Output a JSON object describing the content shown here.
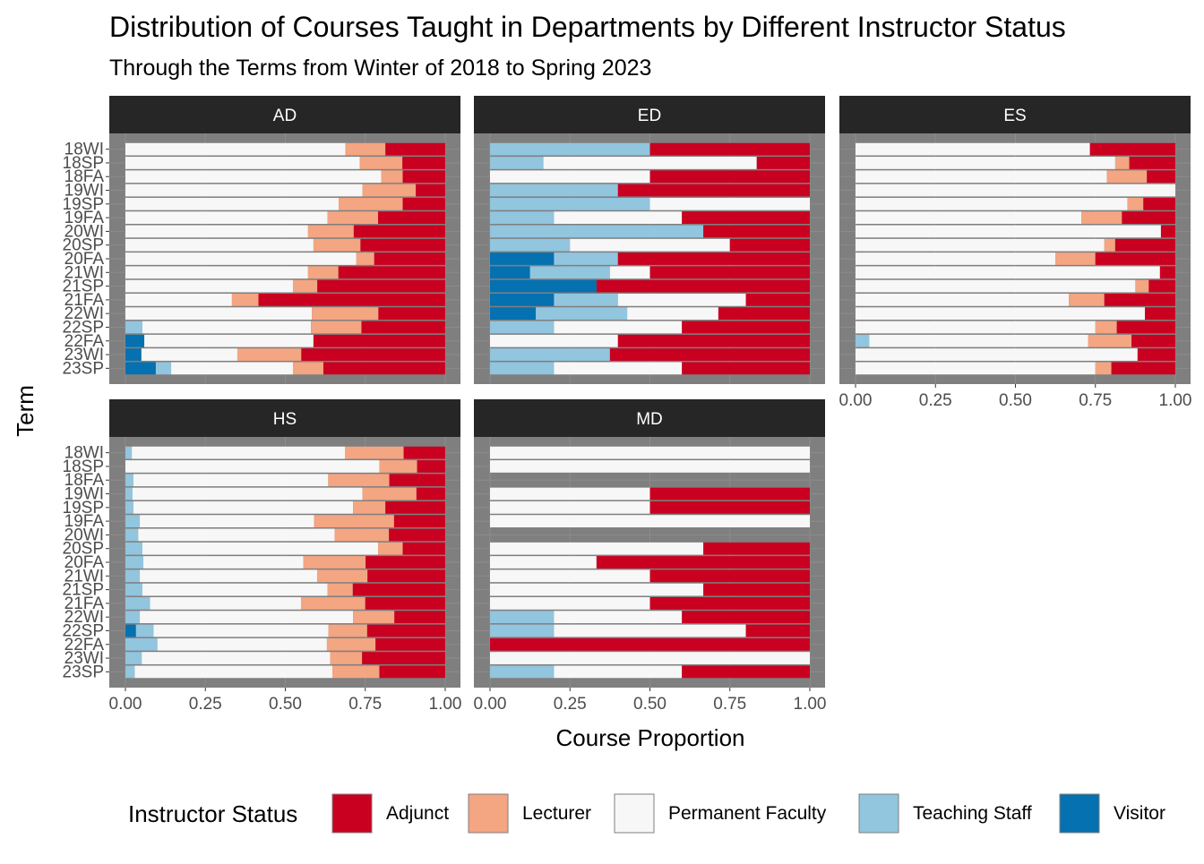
{
  "chart_data": {
    "type": "bar",
    "orientation": "horizontal",
    "stacked": true,
    "title": "Distribution of Courses Taught in Departments by Different Instructor Status",
    "subtitle": "Through the Terms from Winter of 2018 to Spring 2023",
    "xlabel": "Course Proportion",
    "ylabel": "Term",
    "xlim": [
      0,
      1
    ],
    "x_ticks": [
      "0.00",
      "0.25",
      "0.50",
      "0.75",
      "1.00"
    ],
    "categories": [
      "18WI",
      "18SP",
      "18FA",
      "19WI",
      "19SP",
      "19FA",
      "20WI",
      "20SP",
      "20FA",
      "21WI",
      "21SP",
      "21FA",
      "22WI",
      "22SP",
      "22FA",
      "23WI",
      "23SP"
    ],
    "legend": {
      "title": "Instructor Status",
      "position": "bottom",
      "entries": [
        {
          "name": "Adjunct",
          "color": "#ca0020"
        },
        {
          "name": "Lecturer",
          "color": "#f4a582"
        },
        {
          "name": "Permanent Faculty",
          "color": "#f7f7f7"
        },
        {
          "name": "Teaching Staff",
          "color": "#92c5de"
        },
        {
          "name": "Visitor",
          "color": "#0571b0"
        }
      ]
    },
    "stack_order_left_to_right": [
      "Visitor",
      "Teaching Staff",
      "Permanent Faculty",
      "Lecturer",
      "Adjunct"
    ],
    "panels": [
      {
        "name": "AD",
        "rows": [
          [
            0,
            0,
            0.688,
            0.125,
            0.187
          ],
          [
            0,
            0,
            0.733,
            0.133,
            0.134
          ],
          [
            0,
            0,
            0.8,
            0.067,
            0.133
          ],
          [
            0,
            0,
            0.741,
            0.167,
            0.092
          ],
          [
            0,
            0,
            0.667,
            0.2,
            0.133
          ],
          [
            0,
            0,
            0.632,
            0.158,
            0.21
          ],
          [
            0,
            0,
            0.571,
            0.143,
            0.286
          ],
          [
            0,
            0,
            0.588,
            0.147,
            0.265
          ],
          [
            0,
            0,
            0.722,
            0.056,
            0.222
          ],
          [
            0,
            0,
            0.571,
            0.095,
            0.334
          ],
          [
            0,
            0,
            0.524,
            0.076,
            0.4
          ],
          [
            0,
            0,
            0.333,
            0.083,
            0.584
          ],
          [
            0,
            0,
            0.583,
            0.208,
            0.209
          ],
          [
            0,
            0.053,
            0.527,
            0.158,
            0.262
          ],
          [
            0.059,
            0,
            0.529,
            0,
            0.412
          ],
          [
            0.05,
            0,
            0.3,
            0.2,
            0.45
          ],
          [
            0.095,
            0.048,
            0.381,
            0.095,
            0.381
          ]
        ]
      },
      {
        "name": "ED",
        "rows": [
          [
            0,
            0.5,
            0,
            0,
            0.5
          ],
          [
            0,
            0.167,
            0.667,
            0,
            0.166
          ],
          [
            0,
            0,
            0.5,
            0,
            0.5
          ],
          [
            0,
            0.4,
            0,
            0,
            0.6
          ],
          [
            0,
            0.5,
            0.5,
            0,
            0
          ],
          [
            0,
            0.2,
            0.4,
            0,
            0.4
          ],
          [
            0,
            0.667,
            0,
            0,
            0.333
          ],
          [
            0,
            0.25,
            0.5,
            0,
            0.25
          ],
          [
            0.2,
            0.2,
            0,
            0,
            0.6
          ],
          [
            0.125,
            0.25,
            0.125,
            0,
            0.5
          ],
          [
            0.333,
            0,
            0,
            0,
            0.667
          ],
          [
            0.2,
            0.2,
            0.4,
            0,
            0.2
          ],
          [
            0.143,
            0.286,
            0.285,
            0,
            0.286
          ],
          [
            0,
            0.2,
            0.4,
            0,
            0.4
          ],
          [
            0,
            0,
            0.4,
            0,
            0.6
          ],
          [
            0,
            0.375,
            0,
            0,
            0.625
          ],
          [
            0,
            0.2,
            0.4,
            0,
            0.4
          ]
        ]
      },
      {
        "name": "ES",
        "rows": [
          [
            0,
            0,
            0.733,
            0,
            0.267
          ],
          [
            0,
            0,
            0.812,
            0.044,
            0.144
          ],
          [
            0,
            0,
            0.786,
            0.125,
            0.089
          ],
          [
            0,
            0,
            1.0,
            0,
            0
          ],
          [
            0,
            0,
            0.85,
            0.05,
            0.1
          ],
          [
            0,
            0,
            0.706,
            0.127,
            0.167
          ],
          [
            0,
            0,
            0.955,
            0,
            0.045
          ],
          [
            0,
            0,
            0.778,
            0.034,
            0.188
          ],
          [
            0,
            0,
            0.625,
            0.125,
            0.25
          ],
          [
            0,
            0,
            0.952,
            0,
            0.048
          ],
          [
            0,
            0,
            0.875,
            0.042,
            0.083
          ],
          [
            0,
            0,
            0.667,
            0.111,
            0.222
          ],
          [
            0,
            0,
            0.905,
            0,
            0.095
          ],
          [
            0,
            0,
            0.75,
            0.067,
            0.183
          ],
          [
            0,
            0.043,
            0.684,
            0.136,
            0.137
          ],
          [
            0,
            0,
            0.882,
            0,
            0.118
          ],
          [
            0,
            0,
            0.75,
            0.05,
            0.2
          ]
        ]
      },
      {
        "name": "HS",
        "rows": [
          [
            0,
            0.02,
            0.667,
            0.183,
            0.13
          ],
          [
            0,
            0,
            0.794,
            0.118,
            0.088
          ],
          [
            0,
            0.025,
            0.609,
            0.191,
            0.175
          ],
          [
            0,
            0.022,
            0.719,
            0.169,
            0.09
          ],
          [
            0,
            0.025,
            0.687,
            0.101,
            0.187
          ],
          [
            0,
            0.045,
            0.545,
            0.25,
            0.16
          ],
          [
            0,
            0.04,
            0.614,
            0.17,
            0.176
          ],
          [
            0,
            0.053,
            0.737,
            0.077,
            0.133
          ],
          [
            0,
            0.056,
            0.5,
            0.195,
            0.249
          ],
          [
            0,
            0.045,
            0.555,
            0.157,
            0.243
          ],
          [
            0,
            0.053,
            0.579,
            0.079,
            0.289
          ],
          [
            0,
            0.077,
            0.472,
            0.201,
            0.25
          ],
          [
            0,
            0.045,
            0.667,
            0.129,
            0.159
          ],
          [
            0.033,
            0.055,
            0.547,
            0.121,
            0.244
          ],
          [
            0,
            0.1,
            0.53,
            0.152,
            0.218
          ],
          [
            0,
            0.051,
            0.589,
            0.1,
            0.26
          ],
          [
            0,
            0.029,
            0.618,
            0.147,
            0.206
          ]
        ]
      },
      {
        "name": "MD",
        "rows": [
          [
            0,
            0,
            1.0,
            0,
            0
          ],
          [
            0,
            0,
            1.0,
            0,
            0
          ],
          [
            0,
            0,
            0,
            0,
            0
          ],
          [
            0,
            0,
            0.5,
            0,
            0.5
          ],
          [
            0,
            0,
            0.5,
            0,
            0.5
          ],
          [
            0,
            0,
            1.0,
            0,
            0
          ],
          [
            0,
            0,
            0,
            0,
            0
          ],
          [
            0,
            0,
            0.667,
            0,
            0.333
          ],
          [
            0,
            0,
            0.333,
            0,
            0.667
          ],
          [
            0,
            0,
            0.5,
            0,
            0.5
          ],
          [
            0,
            0,
            0.667,
            0,
            0.333
          ],
          [
            0,
            0,
            0.5,
            0,
            0.5
          ],
          [
            0,
            0.2,
            0.4,
            0,
            0.4
          ],
          [
            0,
            0.2,
            0.6,
            0,
            0.2
          ],
          [
            0,
            0,
            0,
            0,
            1.0
          ],
          [
            0,
            0,
            1.0,
            0,
            0
          ],
          [
            0,
            0.2,
            0.4,
            0,
            0.4
          ]
        ]
      }
    ]
  }
}
